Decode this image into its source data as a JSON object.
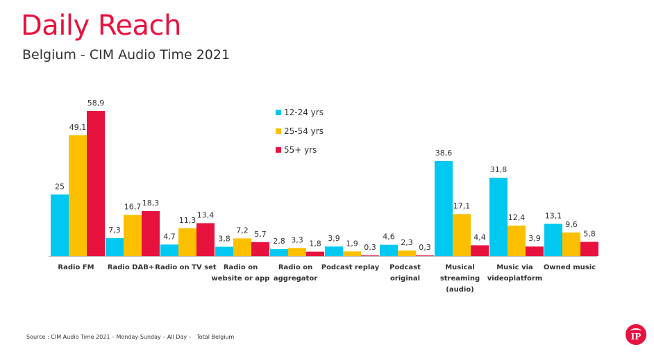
{
  "header": {
    "title": "Daily Reach",
    "subtitle": "Belgium - CIM Audio Time 2021"
  },
  "footer": {
    "source": "Source : CIM Audio Time 2021 – Monday-Sunday – All Day –   Total Belgium",
    "logo_text": "IP"
  },
  "colors": {
    "12-24 yrs": "#00c8f0",
    "25-54 yrs": "#fcc000",
    "55+ yrs": "#e8123f",
    "title": "#e8123f"
  },
  "chart_data": {
    "type": "bar",
    "categories": [
      [
        "Radio FM"
      ],
      [
        "Radio DAB+"
      ],
      [
        "Radio on TV set"
      ],
      [
        "Radio on",
        "website or app"
      ],
      [
        "Radio on",
        "aggregator"
      ],
      [
        "Podcast replay"
      ],
      [
        "Podcast",
        "original"
      ],
      [
        "Musical",
        "streaming",
        "(audio)"
      ],
      [
        "Music via",
        "videoplatform"
      ],
      [
        "Owned music"
      ]
    ],
    "series": [
      {
        "name": "12-24 yrs",
        "values": [
          25,
          7.3,
          4.7,
          3.8,
          2.8,
          3.9,
          4.6,
          38.6,
          31.8,
          13.1
        ],
        "labels": [
          "25",
          "7,3",
          "4,7",
          "3,8",
          "2,8",
          "3,9",
          "4,6",
          "38,6",
          "31,8",
          "13,1"
        ]
      },
      {
        "name": "25-54 yrs",
        "values": [
          49.1,
          16.7,
          11.3,
          7.2,
          3.3,
          1.9,
          2.3,
          17.1,
          12.4,
          9.6
        ],
        "labels": [
          "49,1",
          "16,7",
          "11,3",
          "7,2",
          "3,3",
          "1,9",
          "2,3",
          "17,1",
          "12,4",
          "9,6"
        ]
      },
      {
        "name": "55+ yrs",
        "values": [
          58.9,
          18.3,
          13.4,
          5.7,
          1.8,
          0.3,
          0.3,
          4.4,
          3.9,
          5.8
        ],
        "labels": [
          "58,9",
          "18,3",
          "13,4",
          "5,7",
          "1,8",
          "0,3",
          "0,3",
          "4,4",
          "3,9",
          "5,8"
        ]
      }
    ],
    "ylim": [
      0,
      58.9
    ],
    "grid": false,
    "legend_position": "top-center"
  }
}
